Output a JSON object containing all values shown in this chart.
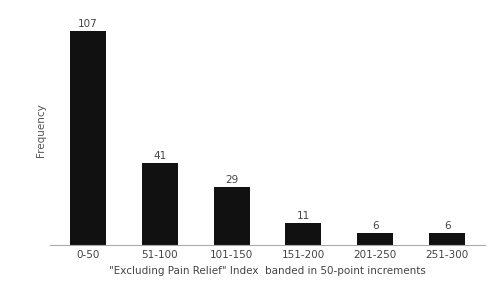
{
  "categories": [
    "0-50",
    "51-100",
    "101-150",
    "151-200",
    "201-250",
    "251-300"
  ],
  "values": [
    107,
    41,
    29,
    11,
    6,
    6
  ],
  "bar_color": "#111111",
  "bar_edge_color": "#111111",
  "ylabel": "Frequency",
  "xlabel": "\"Excluding Pain Relief\" Index  banded in 50-point increments",
  "ylim": [
    0,
    115
  ],
  "bar_width": 0.5,
  "label_fontsize": 7.5,
  "axis_label_fontsize": 7.5,
  "tick_fontsize": 7.5,
  "background_color": "#ffffff",
  "spine_color": "#aaaaaa"
}
